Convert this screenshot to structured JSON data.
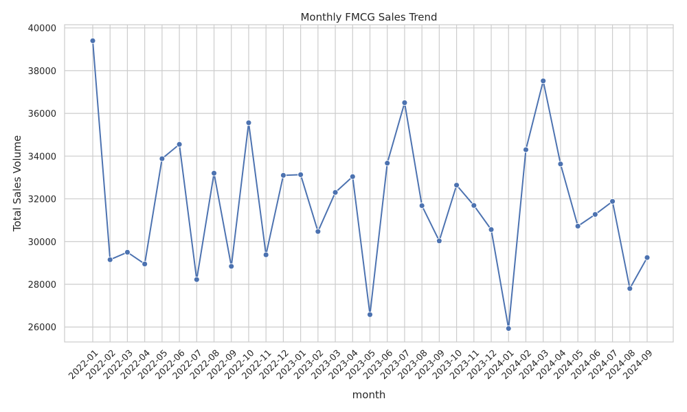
{
  "chart_data": {
    "type": "line",
    "title": "Monthly FMCG Sales Trend",
    "xlabel": "month",
    "ylabel": "Total Sales Volume",
    "ylim": [
      25300,
      40150
    ],
    "yticks": [
      26000,
      28000,
      30000,
      32000,
      34000,
      36000,
      38000,
      40000
    ],
    "grid": true,
    "marker": "circle",
    "colors": {
      "line": "#4c72b0",
      "grid": "#cccccc",
      "spine": "#cccccc",
      "background": "#ffffff"
    },
    "categories": [
      "2022-01",
      "2022-02",
      "2022-03",
      "2022-04",
      "2022-05",
      "2022-06",
      "2022-07",
      "2022-08",
      "2022-09",
      "2022-10",
      "2022-11",
      "2022-12",
      "2023-01",
      "2023-02",
      "2023-03",
      "2023-04",
      "2023-05",
      "2023-06",
      "2023-07",
      "2023-08",
      "2023-09",
      "2023-10",
      "2023-11",
      "2023-12",
      "2024-01",
      "2024-02",
      "2024-03",
      "2024-04",
      "2024-05",
      "2024-06",
      "2024-07",
      "2024-08",
      "2024-09"
    ],
    "values": [
      39400,
      29150,
      29500,
      28950,
      33880,
      34550,
      28220,
      33200,
      28840,
      35560,
      29380,
      33100,
      33130,
      30470,
      32300,
      33040,
      26580,
      33670,
      36500,
      31680,
      30030,
      32640,
      31690,
      30560,
      25930,
      34300,
      37520,
      33630,
      30720,
      31270,
      31880,
      27800,
      29250
    ]
  }
}
